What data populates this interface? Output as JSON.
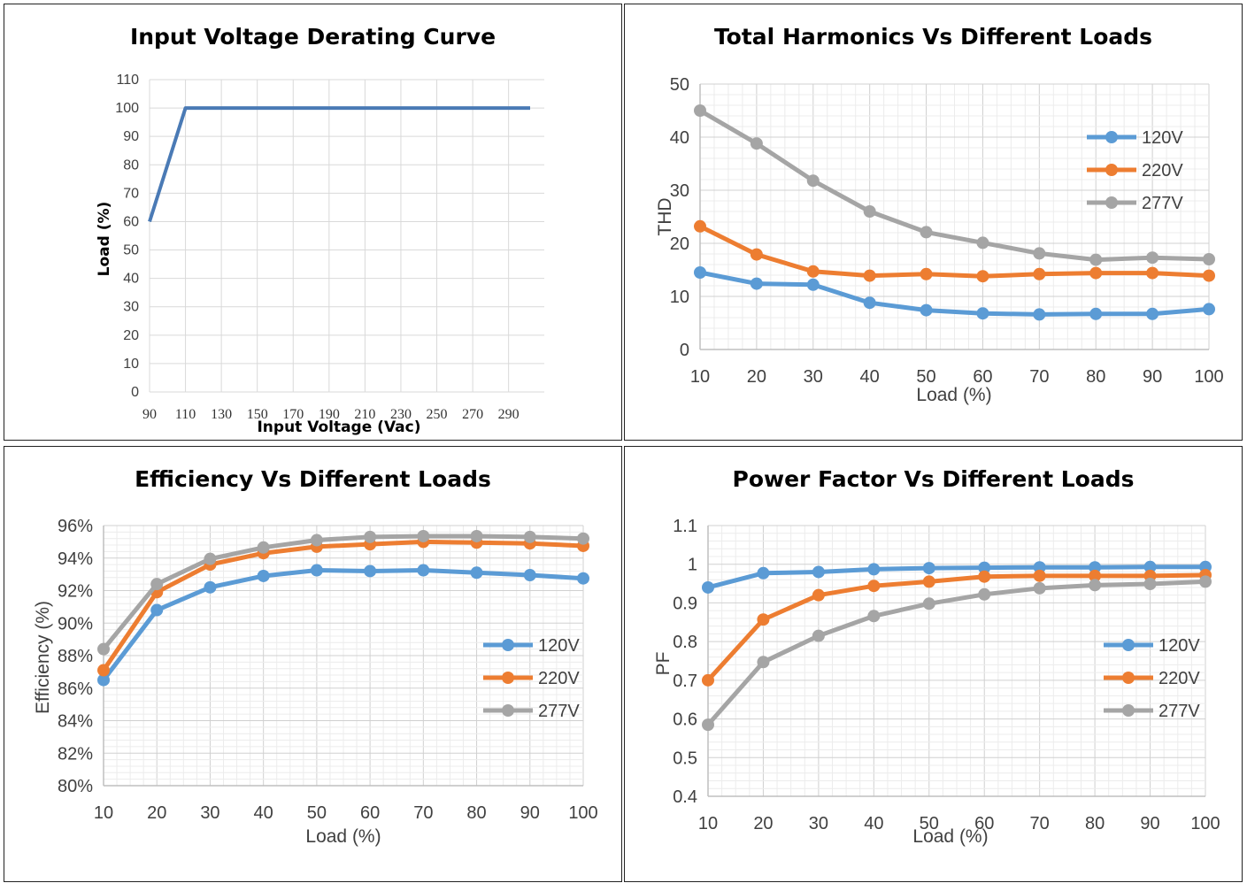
{
  "chart_data": [
    {
      "type": "line",
      "title": "Input Voltage Derating Curve",
      "xlabel": "Input Voltage (Vac)",
      "ylabel": "Load (%)",
      "xlim": [
        90,
        302
      ],
      "ylim": [
        0,
        110
      ],
      "xticks": [
        "90",
        "110",
        "130",
        "150",
        "170",
        "190",
        "210",
        "230",
        "250",
        "270",
        "290"
      ],
      "yticks": [
        "0",
        "10",
        "20",
        "30",
        "40",
        "50",
        "60",
        "70",
        "80",
        "90",
        "100",
        "110"
      ],
      "series": [
        {
          "x": [
            90,
            110,
            302
          ],
          "values": [
            60,
            100,
            100
          ],
          "color": "#4a7ab5"
        }
      ],
      "grid": true,
      "legend": "none"
    },
    {
      "type": "line",
      "title": "Total Harmonics Vs Different Loads",
      "xlabel": "Load (%)",
      "ylabel": "THD",
      "categories": [
        "10",
        "20",
        "30",
        "40",
        "50",
        "60",
        "70",
        "80",
        "90",
        "100"
      ],
      "yticks": [
        "0",
        "10",
        "20",
        "30",
        "40",
        "50"
      ],
      "ylim": [
        0,
        50
      ],
      "series": [
        {
          "name": "120V",
          "values": [
            14.5,
            12.4,
            12.2,
            8.8,
            7.4,
            6.8,
            6.6,
            6.7,
            6.7,
            7.6
          ],
          "color": "#5b9bd5"
        },
        {
          "name": "220V",
          "values": [
            23.2,
            17.9,
            14.7,
            13.9,
            14.2,
            13.8,
            14.2,
            14.4,
            14.4,
            13.9
          ],
          "color": "#ed7d31"
        },
        {
          "name": "277V",
          "values": [
            45.0,
            38.8,
            31.8,
            26.0,
            22.1,
            20.1,
            18.1,
            16.9,
            17.3,
            17.0
          ],
          "color": "#a5a5a5"
        }
      ],
      "grid": true,
      "legend": "right"
    },
    {
      "type": "line",
      "title": "Efficiency Vs Different Loads",
      "xlabel": "Load (%)",
      "ylabel": "Efficiency (%)",
      "categories": [
        "10",
        "20",
        "30",
        "40",
        "50",
        "60",
        "70",
        "80",
        "90",
        "100"
      ],
      "yticks": [
        "80%",
        "82%",
        "84%",
        "86%",
        "88%",
        "90%",
        "92%",
        "94%",
        "96%"
      ],
      "ylim": [
        80,
        96
      ],
      "series": [
        {
          "name": "120V",
          "values": [
            86.5,
            90.8,
            92.2,
            92.9,
            93.25,
            93.2,
            93.25,
            93.1,
            92.95,
            92.75
          ],
          "color": "#5b9bd5"
        },
        {
          "name": "220V",
          "values": [
            87.1,
            91.9,
            93.6,
            94.3,
            94.7,
            94.85,
            95.0,
            94.95,
            94.9,
            94.75
          ],
          "color": "#ed7d31"
        },
        {
          "name": "277V",
          "values": [
            88.4,
            92.4,
            93.95,
            94.65,
            95.1,
            95.3,
            95.35,
            95.35,
            95.3,
            95.2
          ],
          "color": "#a5a5a5"
        }
      ],
      "grid": true,
      "legend": "right"
    },
    {
      "type": "line",
      "title": "Power Factor Vs Different Loads",
      "xlabel": "Load (%)",
      "ylabel": "PF",
      "categories": [
        "10",
        "20",
        "30",
        "40",
        "50",
        "60",
        "70",
        "80",
        "90",
        "100"
      ],
      "yticks": [
        "0.4",
        "0.5",
        "0.6",
        "0.7",
        "0.8",
        "0.9",
        "1",
        "1.1"
      ],
      "ylim": [
        0.4,
        1.1
      ],
      "series": [
        {
          "name": "120V",
          "values": [
            0.94,
            0.977,
            0.98,
            0.987,
            0.99,
            0.991,
            0.992,
            0.992,
            0.993,
            0.993
          ],
          "color": "#5b9bd5"
        },
        {
          "name": "220V",
          "values": [
            0.7,
            0.857,
            0.92,
            0.944,
            0.955,
            0.968,
            0.97,
            0.97,
            0.97,
            0.972
          ],
          "color": "#ed7d31"
        },
        {
          "name": "277V",
          "values": [
            0.585,
            0.747,
            0.815,
            0.866,
            0.898,
            0.922,
            0.938,
            0.946,
            0.949,
            0.955
          ],
          "color": "#a5a5a5"
        }
      ],
      "grid": true,
      "legend": "right"
    }
  ]
}
